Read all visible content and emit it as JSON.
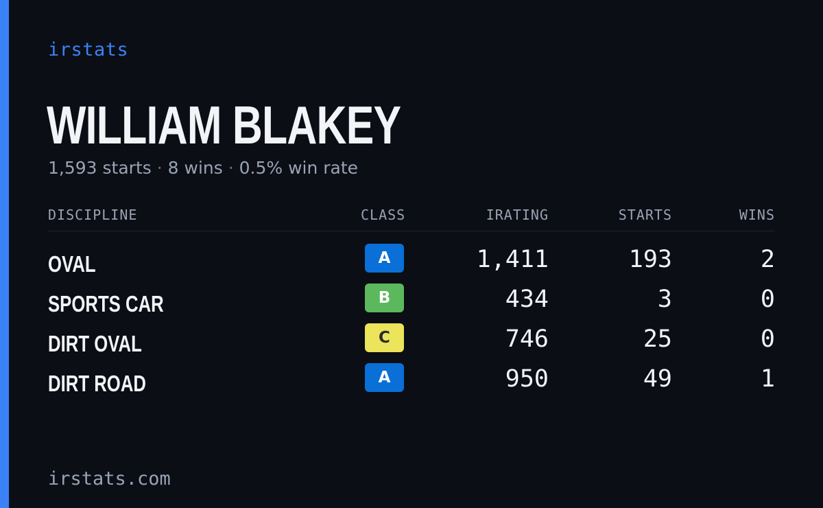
{
  "brand": "irstats",
  "player": {
    "name": "WILLIAM BLAKEY",
    "starts": "1,593 starts",
    "wins": "8 wins",
    "win_rate": "0.5% win rate",
    "separator": "·"
  },
  "table": {
    "headers": {
      "discipline": "DISCIPLINE",
      "class": "CLASS",
      "irating": "IRATING",
      "starts": "STARTS",
      "wins": "WINS"
    },
    "rows": [
      {
        "discipline": "OVAL",
        "class": "A",
        "irating": "1,411",
        "starts": "193",
        "wins": "2"
      },
      {
        "discipline": "SPORTS CAR",
        "class": "B",
        "irating": "434",
        "starts": "3",
        "wins": "0"
      },
      {
        "discipline": "DIRT OVAL",
        "class": "C",
        "irating": "746",
        "starts": "25",
        "wins": "0"
      },
      {
        "discipline": "DIRT ROAD",
        "class": "A",
        "irating": "950",
        "starts": "49",
        "wins": "1"
      }
    ]
  },
  "class_colors": {
    "A": {
      "bg": "#0a6fd6",
      "fg": "#ffffff"
    },
    "B": {
      "bg": "#5cb85c",
      "fg": "#ffffff"
    },
    "C": {
      "bg": "#ece45a",
      "fg": "#2a2a2a"
    }
  },
  "footer": "irstats.com"
}
